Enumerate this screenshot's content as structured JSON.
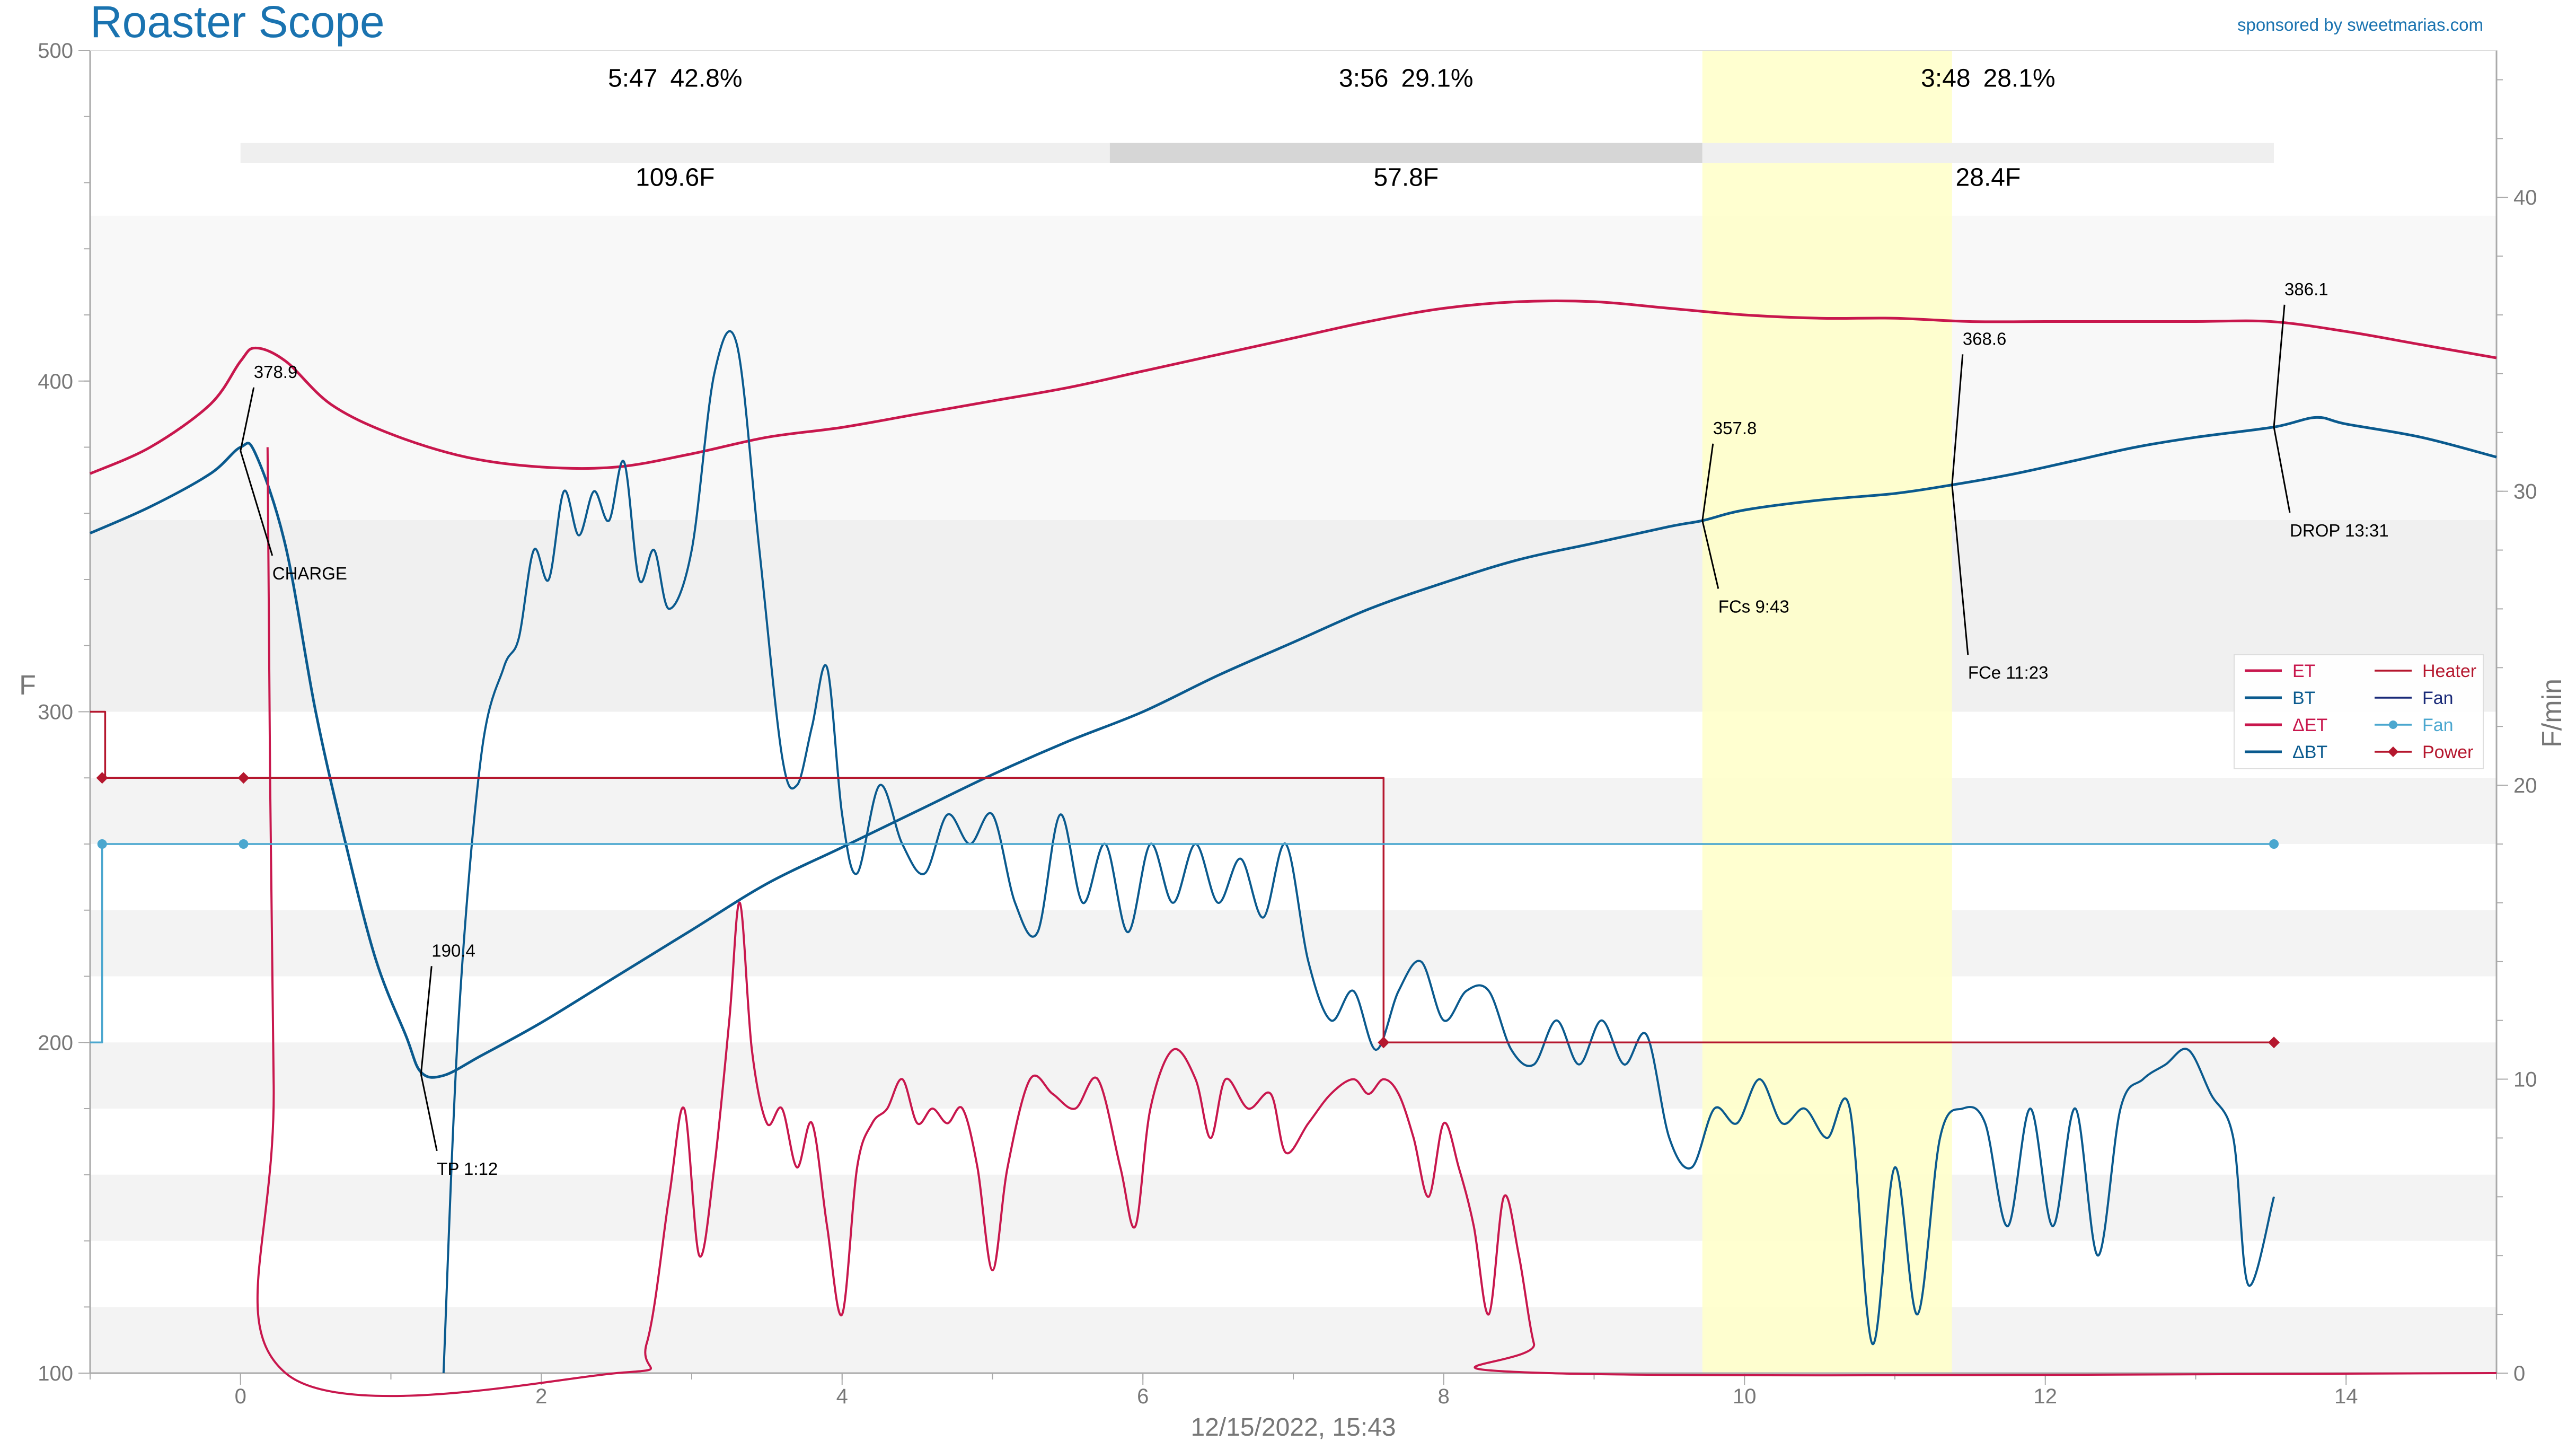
{
  "header": {
    "title": "Roaster Scope",
    "sponsor": "sponsored by sweetmarias.com",
    "date": "12/15/2022, 15:43"
  },
  "colors": {
    "et": "#c8174d",
    "bt": "#0a5a8e",
    "fan": "#4ba7cf",
    "heater": "#b5172e",
    "fan_legend": "#1a2a78",
    "title": "#1a73b0",
    "fc_band": "#ffffc8"
  },
  "chart_data": {
    "type": "line",
    "xlim": [
      -1,
      15
    ],
    "ylim": [
      100,
      500
    ],
    "y2lim": [
      0,
      45
    ],
    "xlabel": "",
    "ylabel": "F",
    "y2label": "F/min",
    "x_ticks": [
      0,
      2,
      4,
      6,
      8,
      10,
      12,
      14
    ],
    "y_ticks": [
      100,
      200,
      300,
      400,
      500
    ],
    "y2_ticks": [
      0,
      10,
      20,
      30,
      40
    ],
    "phases": [
      {
        "time": "5:47",
        "pct": "42.8%",
        "delta": "109.6F",
        "x0": 0,
        "x1": 5.78
      },
      {
        "time": "3:56",
        "pct": "29.1%",
        "delta": "57.8F",
        "x0": 5.78,
        "x1": 9.72
      },
      {
        "time": "3:48",
        "pct": "28.1%",
        "delta": "28.4F",
        "x0": 9.72,
        "x1": 13.52
      }
    ],
    "fc_band": [
      9.72,
      11.38
    ],
    "events": [
      {
        "name": "CHARGE",
        "x": 0,
        "temp": "378.9"
      },
      {
        "name": "TP 1:12",
        "x": 1.2,
        "temp": "190.4"
      },
      {
        "name": "FCs 9:43",
        "x": 9.72,
        "temp": "357.8"
      },
      {
        "name": "FCe 11:23",
        "x": 11.38,
        "temp": "368.6"
      },
      {
        "name": "DROP 13:31",
        "x": 13.52,
        "temp": "386.1"
      }
    ],
    "series": [
      {
        "name": "ET",
        "axis": "y",
        "points": [
          [
            -1,
            372
          ],
          [
            -0.6,
            380
          ],
          [
            -0.2,
            393
          ],
          [
            0,
            406
          ],
          [
            0.1,
            410
          ],
          [
            0.3,
            406
          ],
          [
            0.6,
            393
          ],
          [
            1,
            384
          ],
          [
            1.5,
            377
          ],
          [
            2,
            374
          ],
          [
            2.5,
            374
          ],
          [
            3,
            378
          ],
          [
            3.5,
            383
          ],
          [
            4,
            386
          ],
          [
            4.5,
            390
          ],
          [
            5,
            394
          ],
          [
            5.5,
            398
          ],
          [
            6,
            403
          ],
          [
            6.5,
            408
          ],
          [
            7,
            413
          ],
          [
            7.5,
            418
          ],
          [
            8,
            422
          ],
          [
            8.5,
            424
          ],
          [
            9,
            424
          ],
          [
            9.5,
            422
          ],
          [
            10,
            420
          ],
          [
            10.5,
            419
          ],
          [
            11,
            419
          ],
          [
            11.5,
            418
          ],
          [
            12,
            418
          ],
          [
            12.5,
            418
          ],
          [
            13,
            418
          ],
          [
            13.5,
            418
          ],
          [
            14,
            415
          ],
          [
            14.5,
            411
          ],
          [
            15,
            407
          ]
        ]
      },
      {
        "name": "BT",
        "axis": "y",
        "points": [
          [
            -1,
            354
          ],
          [
            -0.6,
            362
          ],
          [
            -0.2,
            372
          ],
          [
            0,
            380
          ],
          [
            0.1,
            378
          ],
          [
            0.3,
            350
          ],
          [
            0.5,
            300
          ],
          [
            0.7,
            260
          ],
          [
            0.9,
            225
          ],
          [
            1.1,
            202
          ],
          [
            1.2,
            191
          ],
          [
            1.35,
            190
          ],
          [
            1.6,
            196
          ],
          [
            2,
            206
          ],
          [
            2.5,
            220
          ],
          [
            3,
            234
          ],
          [
            3.5,
            248
          ],
          [
            4,
            259
          ],
          [
            4.5,
            270
          ],
          [
            5,
            281
          ],
          [
            5.5,
            291
          ],
          [
            6,
            300
          ],
          [
            6.5,
            311
          ],
          [
            7,
            321
          ],
          [
            7.5,
            331
          ],
          [
            8,
            339
          ],
          [
            8.5,
            346
          ],
          [
            9,
            351
          ],
          [
            9.5,
            356
          ],
          [
            9.72,
            357.8
          ],
          [
            10,
            361
          ],
          [
            10.5,
            364
          ],
          [
            11,
            366
          ],
          [
            11.38,
            368.6
          ],
          [
            11.8,
            372
          ],
          [
            12.2,
            376
          ],
          [
            12.6,
            380
          ],
          [
            13,
            383
          ],
          [
            13.52,
            386.1
          ],
          [
            13.8,
            389
          ],
          [
            14,
            387
          ],
          [
            14.5,
            383
          ],
          [
            15,
            377
          ]
        ]
      },
      {
        "name": "ΔET",
        "axis": "y2",
        "points": [
          [
            0.18,
            31.5
          ],
          [
            0.22,
            10
          ],
          [
            0.3,
            0
          ],
          [
            2.5,
            0
          ],
          [
            2.7,
            1
          ],
          [
            2.85,
            6
          ],
          [
            2.95,
            9
          ],
          [
            3.05,
            4
          ],
          [
            3.15,
            7
          ],
          [
            3.25,
            12
          ],
          [
            3.32,
            16
          ],
          [
            3.4,
            11
          ],
          [
            3.5,
            8.5
          ],
          [
            3.6,
            9
          ],
          [
            3.7,
            7
          ],
          [
            3.8,
            8.5
          ],
          [
            3.9,
            5
          ],
          [
            4,
            2
          ],
          [
            4.1,
            7
          ],
          [
            4.2,
            8.5
          ],
          [
            4.3,
            9
          ],
          [
            4.4,
            10
          ],
          [
            4.5,
            8.5
          ],
          [
            4.6,
            9
          ],
          [
            4.7,
            8.5
          ],
          [
            4.8,
            9
          ],
          [
            4.9,
            7
          ],
          [
            5,
            3.5
          ],
          [
            5.1,
            7
          ],
          [
            5.25,
            10
          ],
          [
            5.4,
            9.5
          ],
          [
            5.55,
            9
          ],
          [
            5.7,
            10
          ],
          [
            5.85,
            7
          ],
          [
            5.95,
            5
          ],
          [
            6.05,
            9
          ],
          [
            6.2,
            11
          ],
          [
            6.35,
            10
          ],
          [
            6.45,
            8
          ],
          [
            6.55,
            10
          ],
          [
            6.7,
            9
          ],
          [
            6.85,
            9.5
          ],
          [
            6.95,
            7.5
          ],
          [
            7.1,
            8.5
          ],
          [
            7.25,
            9.5
          ],
          [
            7.4,
            10
          ],
          [
            7.5,
            9.5
          ],
          [
            7.6,
            10
          ],
          [
            7.7,
            9.5
          ],
          [
            7.8,
            8
          ],
          [
            7.9,
            6
          ],
          [
            8,
            8.5
          ],
          [
            8.1,
            7
          ],
          [
            8.2,
            5
          ],
          [
            8.3,
            2
          ],
          [
            8.4,
            6
          ],
          [
            8.5,
            4
          ],
          [
            8.6,
            1
          ],
          [
            8.7,
            0
          ],
          [
            15,
            0
          ]
        ]
      },
      {
        "name": "ΔBT",
        "axis": "y2",
        "points": [
          [
            1.35,
            0
          ],
          [
            1.45,
            12
          ],
          [
            1.6,
            21
          ],
          [
            1.75,
            24
          ],
          [
            1.85,
            25
          ],
          [
            1.95,
            28
          ],
          [
            2.05,
            27
          ],
          [
            2.15,
            30
          ],
          [
            2.25,
            28.5
          ],
          [
            2.35,
            30
          ],
          [
            2.45,
            29
          ],
          [
            2.55,
            31
          ],
          [
            2.65,
            27
          ],
          [
            2.75,
            28
          ],
          [
            2.85,
            26
          ],
          [
            3,
            28
          ],
          [
            3.15,
            34
          ],
          [
            3.3,
            35
          ],
          [
            3.45,
            28
          ],
          [
            3.6,
            21
          ],
          [
            3.7,
            20
          ],
          [
            3.8,
            22
          ],
          [
            3.9,
            24
          ],
          [
            4,
            19
          ],
          [
            4.1,
            17
          ],
          [
            4.25,
            20
          ],
          [
            4.4,
            18
          ],
          [
            4.55,
            17
          ],
          [
            4.7,
            19
          ],
          [
            4.85,
            18
          ],
          [
            5,
            19
          ],
          [
            5.15,
            16
          ],
          [
            5.3,
            15
          ],
          [
            5.45,
            19
          ],
          [
            5.6,
            16
          ],
          [
            5.75,
            18
          ],
          [
            5.9,
            15
          ],
          [
            6.05,
            18
          ],
          [
            6.2,
            16
          ],
          [
            6.35,
            18
          ],
          [
            6.5,
            16
          ],
          [
            6.65,
            17.5
          ],
          [
            6.8,
            15.5
          ],
          [
            6.95,
            18
          ],
          [
            7.1,
            14
          ],
          [
            7.25,
            12
          ],
          [
            7.4,
            13
          ],
          [
            7.55,
            11
          ],
          [
            7.7,
            13
          ],
          [
            7.85,
            14
          ],
          [
            8,
            12
          ],
          [
            8.15,
            13
          ],
          [
            8.3,
            13
          ],
          [
            8.45,
            11
          ],
          [
            8.6,
            10.5
          ],
          [
            8.75,
            12
          ],
          [
            8.9,
            10.5
          ],
          [
            9.05,
            12
          ],
          [
            9.2,
            10.5
          ],
          [
            9.35,
            11.5
          ],
          [
            9.5,
            8
          ],
          [
            9.65,
            7
          ],
          [
            9.8,
            9
          ],
          [
            9.95,
            8.5
          ],
          [
            10.1,
            10
          ],
          [
            10.25,
            8.5
          ],
          [
            10.4,
            9
          ],
          [
            10.55,
            8
          ],
          [
            10.7,
            9
          ],
          [
            10.85,
            1
          ],
          [
            11,
            7
          ],
          [
            11.15,
            2
          ],
          [
            11.3,
            8
          ],
          [
            11.45,
            9
          ],
          [
            11.6,
            8.5
          ],
          [
            11.75,
            5
          ],
          [
            11.9,
            9
          ],
          [
            12.05,
            5
          ],
          [
            12.2,
            9
          ],
          [
            12.35,
            4
          ],
          [
            12.5,
            9
          ],
          [
            12.65,
            10
          ],
          [
            12.8,
            10.5
          ],
          [
            12.95,
            11
          ],
          [
            13.1,
            9.5
          ],
          [
            13.25,
            8
          ],
          [
            13.35,
            3
          ],
          [
            13.52,
            6
          ]
        ]
      },
      {
        "name": "Heater",
        "axis": "y",
        "step": true,
        "points": [
          [
            -1,
            300
          ],
          [
            -0.9,
            300
          ],
          [
            -0.9,
            280
          ],
          [
            7.6,
            280
          ],
          [
            7.6,
            200
          ],
          [
            13.52,
            200
          ]
        ]
      },
      {
        "name": "Fan",
        "axis": "y",
        "step": true,
        "points": [
          [
            -1,
            200
          ],
          [
            -0.92,
            200
          ],
          [
            -0.92,
            260
          ],
          [
            13.52,
            260
          ]
        ]
      },
      {
        "name": "Power",
        "axis": "y",
        "points": [
          [
            -0.92,
            280
          ],
          [
            0.02,
            280
          ],
          [
            7.6,
            200
          ],
          [
            13.52,
            200
          ]
        ]
      }
    ],
    "legend": [
      {
        "label": "ET",
        "marker": false
      },
      {
        "label": "Heater",
        "marker": false
      },
      {
        "label": "BT",
        "marker": false
      },
      {
        "label": "Fan",
        "marker": false
      },
      {
        "label": "ΔET",
        "marker": false
      },
      {
        "label": "Fan",
        "marker": "circle"
      },
      {
        "label": "ΔBT",
        "marker": false
      },
      {
        "label": "Power",
        "marker": "diamond"
      }
    ],
    "legend_position": "right"
  }
}
